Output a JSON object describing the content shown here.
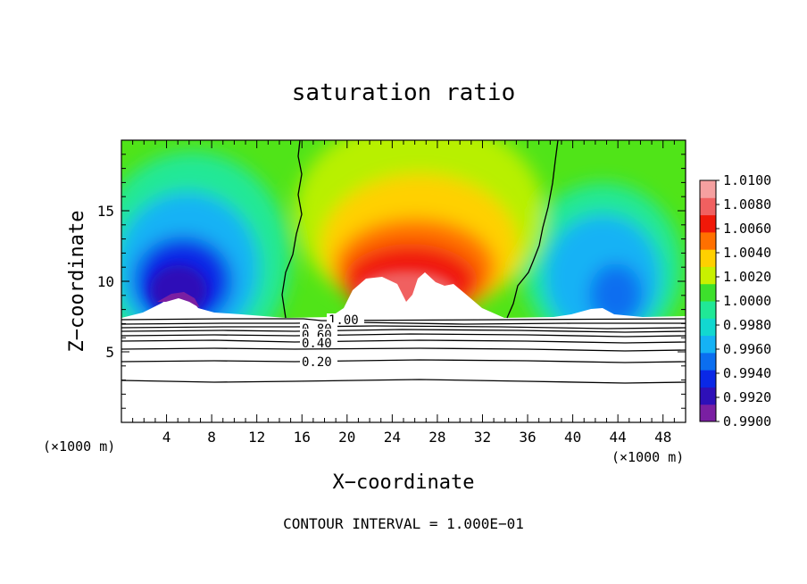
{
  "chart_data": {
    "type": "heatmap",
    "title": "saturation ratio",
    "xlabel": "X−coordinate",
    "ylabel": "Z−coordinate",
    "x_unit": "(×1000 m)",
    "z_unit": "(×1000 m)",
    "xlim": [
      0,
      50
    ],
    "ylim": [
      0,
      20
    ],
    "x_ticks": [
      4,
      8,
      12,
      16,
      20,
      24,
      28,
      32,
      36,
      40,
      44,
      48
    ],
    "y_ticks": [
      5,
      10,
      15
    ],
    "colorbar": {
      "min": 0.99,
      "max": 1.01,
      "tick_labels": [
        "1.0100",
        "1.0080",
        "1.0060",
        "1.0040",
        "1.0020",
        "1.0000",
        "0.9980",
        "0.9960",
        "0.9940",
        "0.9920",
        "0.9900"
      ],
      "colors": [
        "#7a1fa2",
        "#2e10b8",
        "#0a28e6",
        "#0b6ef0",
        "#15b2f5",
        "#12d8d0",
        "#20e896",
        "#3de02c",
        "#c8f000",
        "#ffd000",
        "#ff7000",
        "#f01808",
        "#f06060",
        "#f5a0a0"
      ]
    },
    "contour_labels": [
      "1.00",
      "0.80",
      "0.60",
      "0.40",
      "0.20"
    ],
    "footer": "CONTOUR INTERVAL = 1.000E−01"
  }
}
